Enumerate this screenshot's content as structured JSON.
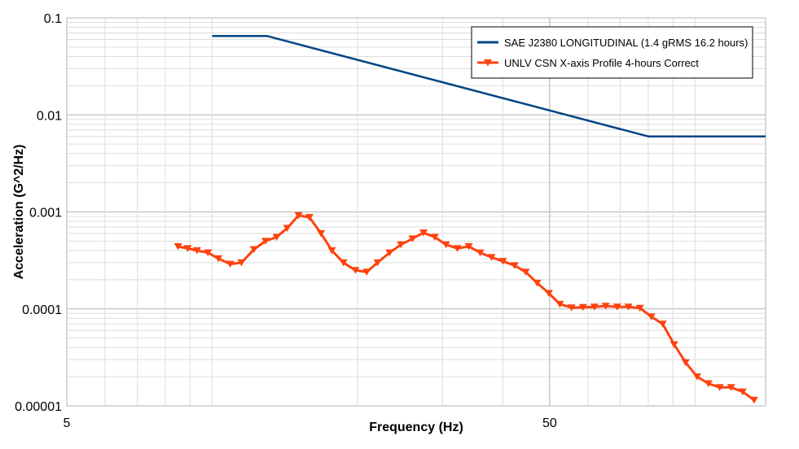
{
  "chart_data": {
    "type": "line",
    "x_scale": "log",
    "y_scale": "log",
    "xlim": [
      5,
      140
    ],
    "ylim": [
      1e-05,
      0.1
    ],
    "xlabel": "Frequency (Hz)",
    "ylabel": "Acceleration (G^2/Hz)",
    "x_tick_labels": [
      {
        "value": 5,
        "label": "5"
      },
      {
        "value": 50,
        "label": "50"
      }
    ],
    "y_tick_labels": [
      {
        "value": 0.1,
        "label": "0.1"
      },
      {
        "value": 0.01,
        "label": "0.01"
      },
      {
        "value": 0.001,
        "label": "0.001"
      },
      {
        "value": 0.0001,
        "label": "0.0001"
      },
      {
        "value": 1e-05,
        "label": "0.00001"
      }
    ],
    "grid": true,
    "legend_position": "top-right",
    "series": [
      {
        "name": "SAE J2380 LONGITUDINAL (1.4 gRMS 16.2 hours)",
        "color": "#004586",
        "marker": "none",
        "x": [
          10,
          13,
          80,
          140
        ],
        "y": [
          0.065,
          0.065,
          0.006,
          0.006
        ]
      },
      {
        "name": "UNLV CSN X-axis Profile 4-hours Correct",
        "color": "#ff420e",
        "marker": "triangle-down",
        "x": [
          8.5,
          8.9,
          9.3,
          9.8,
          10.3,
          10.9,
          11.5,
          12.2,
          12.9,
          13.6,
          14.3,
          15.1,
          15.9,
          16.8,
          17.7,
          18.7,
          19.8,
          20.9,
          22.0,
          23.3,
          24.6,
          26.0,
          27.4,
          28.9,
          30.5,
          32.2,
          34.0,
          35.9,
          37.9,
          40.0,
          42.3,
          44.6,
          47.1,
          49.8,
          52.5,
          55.5,
          58.6,
          61.9,
          65.3,
          69.0,
          72.8,
          76.9,
          81.2,
          85.7,
          90.5,
          95.6,
          101.0,
          106.6,
          112.5,
          118.8,
          125.5,
          132.5
        ],
        "y": [
          0.00044,
          0.00042,
          0.0004,
          0.00038,
          0.00033,
          0.00029,
          0.0003,
          0.00041,
          0.0005,
          0.00055,
          0.00068,
          0.00092,
          0.00088,
          0.0006,
          0.0004,
          0.0003,
          0.00025,
          0.00024,
          0.0003,
          0.00038,
          0.00046,
          0.00053,
          0.00061,
          0.00055,
          0.00046,
          0.00042,
          0.00044,
          0.00038,
          0.00034,
          0.00031,
          0.00028,
          0.00024,
          0.000185,
          0.000145,
          0.000112,
          0.000103,
          0.000104,
          0.000105,
          0.000107,
          0.000105,
          0.000105,
          0.000102,
          8.3e-05,
          7e-05,
          4.3e-05,
          2.8e-05,
          2e-05,
          1.7e-05,
          1.55e-05,
          1.55e-05,
          1.4e-05,
          1.15e-05
        ]
      }
    ]
  }
}
